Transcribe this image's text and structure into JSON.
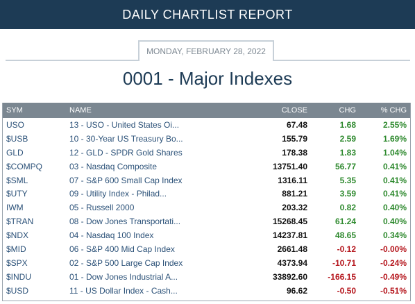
{
  "header": {
    "title": "DAILY CHARTLIST REPORT"
  },
  "report": {
    "date": "MONDAY, FEBRUARY 28, 2022",
    "title": "0001 - Major Indexes"
  },
  "table": {
    "columns": {
      "sym": "SYM",
      "name": "NAME",
      "close": "CLOSE",
      "chg": "CHG",
      "pct": "% CHG"
    },
    "rows": [
      {
        "sym": "USO",
        "name": "13 - USO - United States Oi...",
        "close": "67.48",
        "chg": "1.68",
        "pct": "2.55%",
        "dir": "pos"
      },
      {
        "sym": "$USB",
        "name": "10 - 30-Year US Treasury Bo...",
        "close": "155.79",
        "chg": "2.59",
        "pct": "1.69%",
        "dir": "pos"
      },
      {
        "sym": "GLD",
        "name": "12 - GLD - SPDR Gold Shares",
        "close": "178.38",
        "chg": "1.83",
        "pct": "1.04%",
        "dir": "pos"
      },
      {
        "sym": "$COMPQ",
        "name": "03 - Nasdaq Composite",
        "close": "13751.40",
        "chg": "56.77",
        "pct": "0.41%",
        "dir": "pos"
      },
      {
        "sym": "$SML",
        "name": "07 - S&P 600 Small Cap Index",
        "close": "1316.11",
        "chg": "5.35",
        "pct": "0.41%",
        "dir": "pos"
      },
      {
        "sym": "$UTY",
        "name": "09 - Utility Index - Philad...",
        "close": "881.21",
        "chg": "3.59",
        "pct": "0.41%",
        "dir": "pos"
      },
      {
        "sym": "IWM",
        "name": "05 - Russell 2000",
        "close": "203.32",
        "chg": "0.82",
        "pct": "0.40%",
        "dir": "pos"
      },
      {
        "sym": "$TRAN",
        "name": "08 - Dow Jones Transportati...",
        "close": "15268.45",
        "chg": "61.24",
        "pct": "0.40%",
        "dir": "pos"
      },
      {
        "sym": "$NDX",
        "name": "04 - Nasdaq 100 Index",
        "close": "14237.81",
        "chg": "48.65",
        "pct": "0.34%",
        "dir": "pos"
      },
      {
        "sym": "$MID",
        "name": "06 - S&P 400 Mid Cap Index",
        "close": "2661.48",
        "chg": "-0.12",
        "pct": "-0.00%",
        "dir": "neg"
      },
      {
        "sym": "$SPX",
        "name": "02 - S&P 500 Large Cap Index",
        "close": "4373.94",
        "chg": "-10.71",
        "pct": "-0.24%",
        "dir": "neg"
      },
      {
        "sym": "$INDU",
        "name": "01 - Dow Jones Industrial A...",
        "close": "33892.60",
        "chg": "-166.15",
        "pct": "-0.49%",
        "dir": "neg"
      },
      {
        "sym": "$USD",
        "name": "11 - US Dollar Index - Cash...",
        "close": "96.62",
        "chg": "-0.50",
        "pct": "-0.51%",
        "dir": "neg"
      }
    ]
  }
}
